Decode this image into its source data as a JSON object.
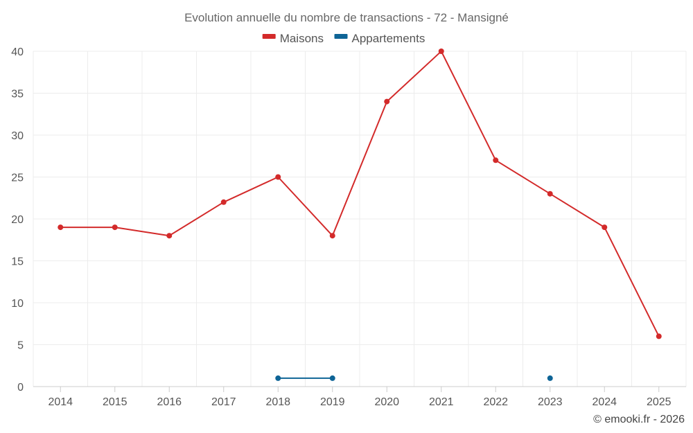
{
  "chart_data": {
    "type": "line",
    "title": "Evolution annuelle du nombre de transactions - 72 - Mansigné",
    "xlabel": "",
    "ylabel": "",
    "categories": [
      "2014",
      "2015",
      "2016",
      "2017",
      "2018",
      "2019",
      "2020",
      "2021",
      "2022",
      "2023",
      "2024",
      "2025"
    ],
    "ylim": [
      0,
      40
    ],
    "yticks": [
      0,
      5,
      10,
      15,
      20,
      25,
      30,
      35,
      40
    ],
    "grid": true,
    "legend_position": "top-center",
    "series": [
      {
        "name": "Maisons",
        "color": "#d32a2a",
        "values": [
          19,
          19,
          18,
          22,
          25,
          18,
          34,
          40,
          27,
          23,
          19,
          6
        ]
      },
      {
        "name": "Appartements",
        "color": "#0e6496",
        "values": [
          null,
          null,
          null,
          null,
          1,
          1,
          null,
          null,
          null,
          1,
          null,
          null
        ]
      }
    ]
  },
  "credit": "© emooki.fr - 2026"
}
